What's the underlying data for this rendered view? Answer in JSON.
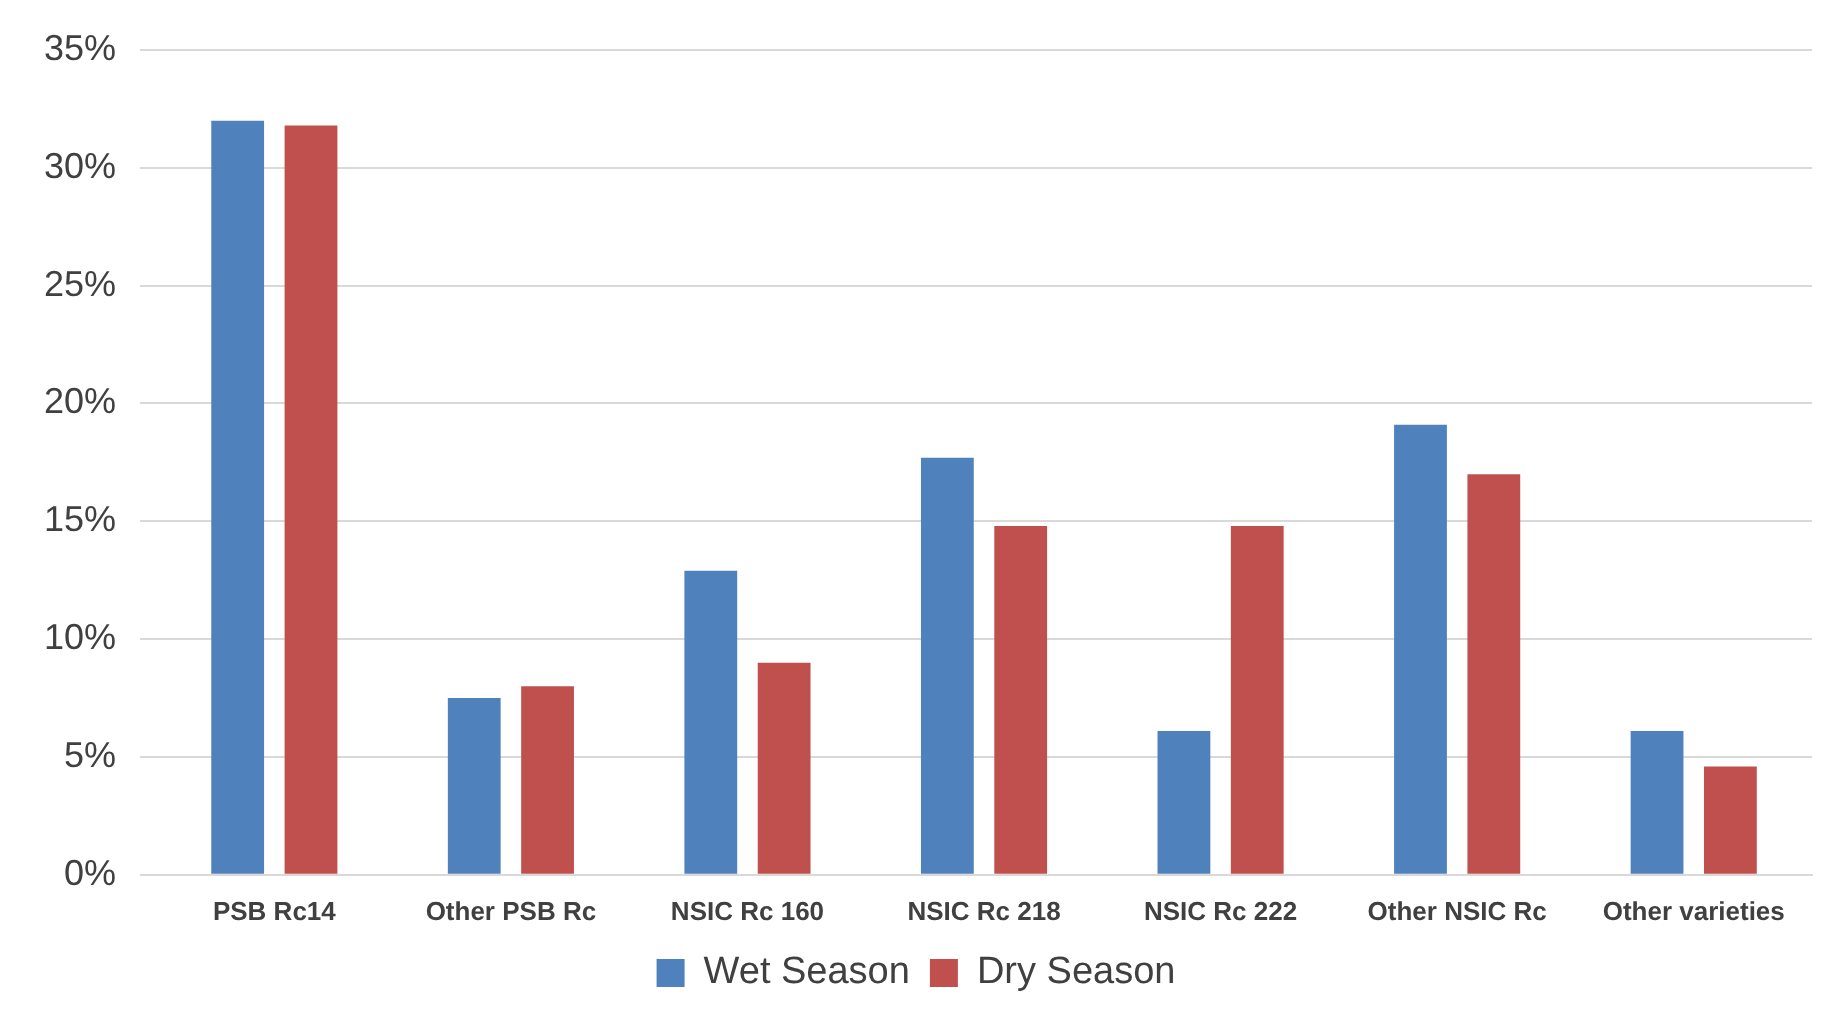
{
  "chart_data": {
    "type": "bar",
    "categories": [
      "PSB Rc14",
      "Other PSB Rc",
      "NSIC Rc 160",
      "NSIC Rc 218",
      "NSIC Rc 222",
      "Other NSIC Rc",
      "Other varieties"
    ],
    "series": [
      {
        "name": "Wet Season",
        "color": "#4f81bd",
        "values": [
          32,
          7.5,
          12.9,
          17.7,
          6.1,
          19.1,
          6.1
        ]
      },
      {
        "name": "Dry Season",
        "color": "#c0504d",
        "values": [
          31.8,
          8,
          9,
          14.8,
          14.8,
          17,
          4.6
        ]
      }
    ],
    "ylim": [
      0,
      35
    ],
    "yticks": [
      {
        "value": 0,
        "label": "0%"
      },
      {
        "value": 5,
        "label": "5%"
      },
      {
        "value": 10,
        "label": "10%"
      },
      {
        "value": 15,
        "label": "15%"
      },
      {
        "value": 20,
        "label": "20%"
      },
      {
        "value": 25,
        "label": "25%"
      },
      {
        "value": 30,
        "label": "30%"
      },
      {
        "value": 35,
        "label": "35%"
      }
    ],
    "grid": "y",
    "legend": "bottom"
  }
}
